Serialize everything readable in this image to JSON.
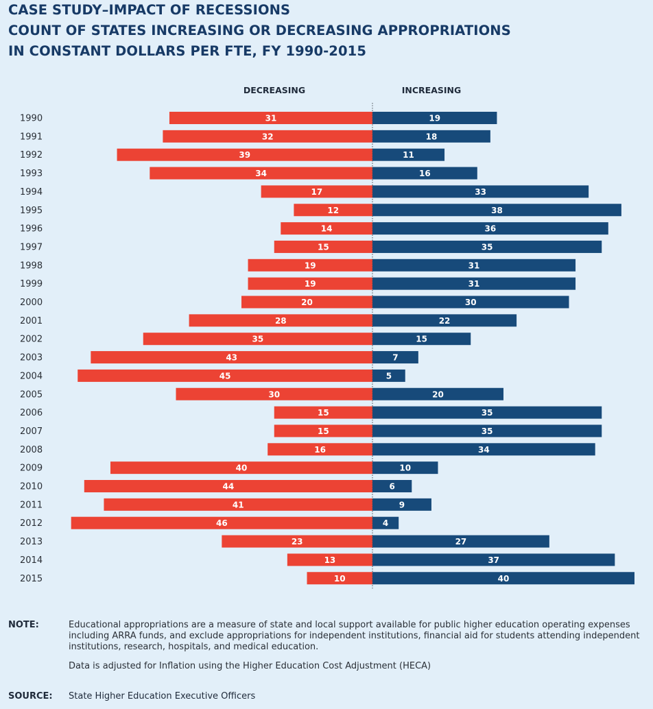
{
  "titles": {
    "line1": "CASE STUDY–IMPACT OF RECESSIONS",
    "line2": "COUNT OF STATES INCREASING OR DECREASING APPROPRIATIONS",
    "line3": "IN CONSTANT DOLLARS PER FTE, FY 1990-2015"
  },
  "colors": {
    "decreasing": "#ec4334",
    "increasing": "#174a7a",
    "background": "#e2eff9",
    "title": "#173a66"
  },
  "chart_data": {
    "type": "bar",
    "orientation": "horizontal-diverging",
    "categories": [
      "1990",
      "1991",
      "1992",
      "1993",
      "1994",
      "1995",
      "1996",
      "1997",
      "1998",
      "1999",
      "2000",
      "2001",
      "2002",
      "2003",
      "2004",
      "2005",
      "2006",
      "2007",
      "2008",
      "2009",
      "2010",
      "2011",
      "2012",
      "2013",
      "2014",
      "2015"
    ],
    "series": [
      {
        "name": "DECREASING",
        "values": [
          31,
          32,
          39,
          34,
          17,
          12,
          14,
          15,
          19,
          19,
          20,
          28,
          35,
          43,
          45,
          30,
          15,
          15,
          16,
          40,
          44,
          41,
          46,
          23,
          13,
          10
        ]
      },
      {
        "name": "INCREASING",
        "values": [
          19,
          18,
          11,
          16,
          33,
          38,
          36,
          35,
          31,
          31,
          30,
          22,
          15,
          7,
          5,
          20,
          35,
          35,
          34,
          10,
          6,
          9,
          4,
          27,
          37,
          40
        ]
      }
    ],
    "axis_range": [
      0,
      46
    ],
    "grid": false,
    "center_line": "dotted"
  },
  "notes": {
    "note_label": "NOTE:",
    "note_paragraph_1": "Educational appropriations are a measure of state and local support available for public higher education operating expenses including ARRA funds, and exclude appropriations for independent institutions, financial aid for students attending independent institutions, research, hospitals, and medical education.",
    "note_paragraph_2": "Data is adjusted for Inflation using the Higher Education Cost Adjustment (HECA)",
    "source_label": "SOURCE:",
    "source_text": "State Higher Education Executive Officers"
  }
}
